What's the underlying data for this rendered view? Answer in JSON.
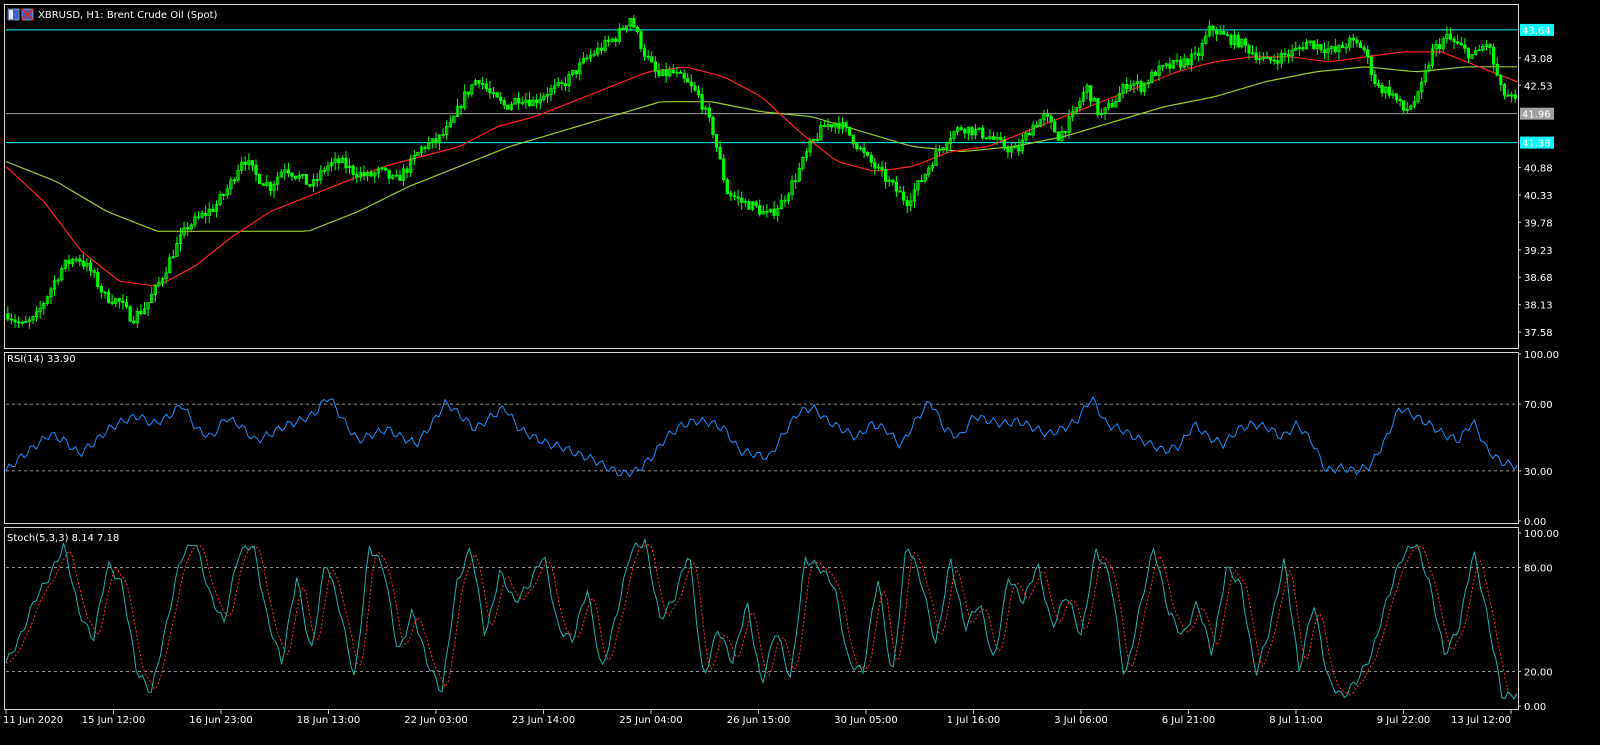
{
  "colors": {
    "background": "#000000",
    "frame": "#d8d8d8",
    "candle": "#00ff00",
    "ma_fast": "#ff2020",
    "ma_slow": "#9acd32",
    "rsi_line": "#1e90ff",
    "stoch_main": "#20b2aa",
    "stoch_signal": "#ff3030",
    "hline_cyan": "#00ffff",
    "hline_gray": "#a0a0a0",
    "level_dotted": "#c8c8c8"
  },
  "header": {
    "icon": "flag-icon",
    "title": "XBRUSD, H1:  Brent Crude Oil (Spot)"
  },
  "rsi_panel": {
    "title": "RSI(14) 33.90",
    "scale_labels": [
      "100.00",
      "70.00",
      "30.00",
      "0.00"
    ]
  },
  "stoch_panel": {
    "title": "Stoch(5,3,3) 8.14 7.18",
    "scale_labels": [
      "100.00",
      "80.00",
      "20.00",
      "0.00"
    ]
  },
  "chart_data": {
    "type": "candlestick",
    "symbol": "XBRUSD",
    "timeframe": "H1",
    "title": "XBRUSD, H1:  Brent Crude Oil (Spot)",
    "ylim": [
      37.3,
      44.12
    ],
    "y_ticks": [
      "43.08",
      "42.53",
      "40.88",
      "40.33",
      "39.78",
      "39.23",
      "38.68",
      "38.13",
      "37.58"
    ],
    "x_ticks": [
      "11 Jun 2020",
      "15 Jun 12:00",
      "16 Jun 23:00",
      "18 Jun 13:00",
      "22 Jun 03:00",
      "23 Jun 14:00",
      "25 Jun 04:00",
      "26 Jun 15:00",
      "30 Jun 05:00",
      "1 Jul 16:00",
      "3 Jul 06:00",
      "6 Jul 21:00",
      "8 Jul 11:00",
      "9 Jul 22:00",
      "13 Jul 12:00"
    ],
    "horizontal_lines": [
      {
        "value": 43.64,
        "label": "43.64",
        "style": "cyan"
      },
      {
        "value": 41.96,
        "label": "41.96",
        "style": "gray"
      },
      {
        "value": 41.38,
        "label": "41.38",
        "style": "cyan"
      }
    ],
    "close_path": [
      37.95,
      37.7,
      37.85,
      38.4,
      38.9,
      39.1,
      38.8,
      38.3,
      38.2,
      37.85,
      38.1,
      38.6,
      39.2,
      39.7,
      39.9,
      40.1,
      40.5,
      41.1,
      40.7,
      40.5,
      40.9,
      40.7,
      40.5,
      40.9,
      41.0,
      40.8,
      40.7,
      40.8,
      40.6,
      40.9,
      41.3,
      41.4,
      41.7,
      42.3,
      42.7,
      42.3,
      42.1,
      42.3,
      42.2,
      42.4,
      42.5,
      42.8,
      43.1,
      43.3,
      43.5,
      43.9,
      43.2,
      42.7,
      42.8,
      42.6,
      42.3,
      41.6,
      40.4,
      40.2,
      40.1,
      39.9,
      40.2,
      40.7,
      41.3,
      41.7,
      41.8,
      41.5,
      41.1,
      40.8,
      40.5,
      40.2,
      40.6,
      41.1,
      41.5,
      41.7,
      41.6,
      41.5,
      41.3,
      41.2,
      41.7,
      41.9,
      41.5,
      41.9,
      42.5,
      41.9,
      42.2,
      42.6,
      42.5,
      42.8,
      42.9,
      43.0,
      43.1,
      43.7,
      43.5,
      43.4,
      43.2,
      43.0,
      43.1,
      43.2,
      43.4,
      43.3,
      43.2,
      43.4,
      43.3,
      42.5,
      42.4,
      42.0,
      42.3,
      43.2,
      43.5,
      43.3,
      43.1,
      43.4,
      42.4,
      42.2
    ],
    "ma_fast_path": [
      40.9,
      40.2,
      39.2,
      38.6,
      38.5,
      38.9,
      39.5,
      40.0,
      40.3,
      40.6,
      40.9,
      41.1,
      41.3,
      41.7,
      41.9,
      42.2,
      42.5,
      42.8,
      42.9,
      42.7,
      42.3,
      41.6,
      41.0,
      40.8,
      40.9,
      41.2,
      41.3,
      41.6,
      41.9,
      42.2,
      42.5,
      42.8,
      43.0,
      43.1,
      43.1,
      43.0,
      43.1,
      43.2,
      43.2,
      42.9,
      42.6
    ],
    "ma_slow_path": [
      41.0,
      40.6,
      40.0,
      39.6,
      39.6,
      39.6,
      39.6,
      40.0,
      40.5,
      40.9,
      41.3,
      41.6,
      41.9,
      42.2,
      42.2,
      42.0,
      41.9,
      41.6,
      41.3,
      41.2,
      41.3,
      41.5,
      41.8,
      42.1,
      42.3,
      42.6,
      42.8,
      42.9,
      42.8,
      42.9,
      42.9
    ],
    "rsi": {
      "name": "RSI(14)",
      "current": 33.9,
      "levels": [
        70,
        30
      ],
      "ylim": [
        0,
        100
      ],
      "values": [
        30,
        38,
        45,
        52,
        48,
        40,
        47,
        55,
        60,
        63,
        58,
        62,
        70,
        55,
        50,
        62,
        57,
        48,
        52,
        57,
        60,
        64,
        75,
        60,
        48,
        52,
        55,
        50,
        46,
        58,
        71,
        63,
        55,
        62,
        68,
        55,
        50,
        46,
        44,
        40,
        37,
        32,
        28,
        30,
        38,
        50,
        57,
        60,
        59,
        55,
        42,
        40,
        38,
        52,
        65,
        68,
        60,
        55,
        50,
        58,
        55,
        45,
        60,
        72,
        55,
        50,
        63,
        60,
        58,
        60,
        56,
        52,
        55,
        60,
        74,
        58,
        55,
        50,
        46,
        42,
        45,
        58,
        50,
        46,
        55,
        58,
        56,
        50,
        58,
        48,
        30,
        32,
        30,
        33,
        48,
        68,
        63,
        58,
        52,
        48,
        60,
        42,
        35,
        33
      ]
    },
    "stoch": {
      "name": "Stoch(5,3,3)",
      "main": 8.14,
      "signal": 7.18,
      "levels": [
        80,
        20
      ],
      "ylim": [
        0,
        100
      ],
      "values": [
        25,
        40,
        62,
        75,
        93,
        55,
        38,
        82,
        70,
        20,
        8,
        45,
        85,
        96,
        65,
        48,
        88,
        94,
        50,
        25,
        75,
        30,
        85,
        55,
        15,
        92,
        80,
        30,
        55,
        25,
        8,
        70,
        92,
        40,
        78,
        60,
        70,
        88,
        45,
        38,
        68,
        20,
        52,
        90,
        95,
        50,
        62,
        90,
        15,
        45,
        25,
        60,
        12,
        45,
        15,
        85,
        80,
        70,
        25,
        20,
        75,
        15,
        95,
        72,
        35,
        85,
        45,
        60,
        25,
        75,
        60,
        82,
        45,
        65,
        40,
        90,
        75,
        15,
        55,
        92,
        55,
        40,
        60,
        30,
        80,
        70,
        18,
        45,
        85,
        20,
        60,
        15,
        5,
        15,
        30,
        60,
        85,
        95,
        70,
        30,
        45,
        90,
        50,
        5,
        7
      ]
    }
  }
}
